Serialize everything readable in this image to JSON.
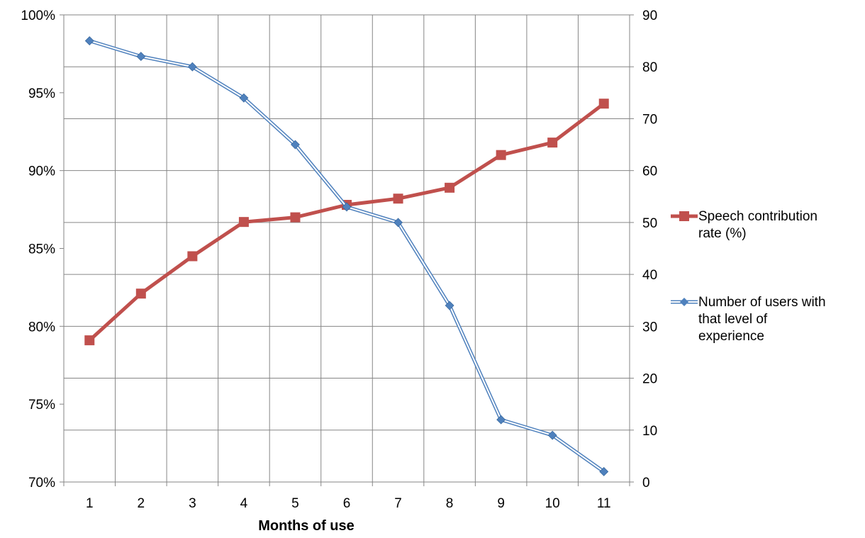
{
  "chart_data": {
    "type": "line",
    "title": "",
    "xlabel": "Months of use",
    "x": [
      1,
      2,
      3,
      4,
      5,
      6,
      7,
      8,
      9,
      10,
      11
    ],
    "y_left": {
      "ylim": [
        70,
        100
      ],
      "ticks": [
        70,
        75,
        80,
        85,
        90,
        95,
        100
      ],
      "tick_labels": [
        "70%",
        "75%",
        "80%",
        "85%",
        "90%",
        "95%",
        "100%"
      ]
    },
    "y_right": {
      "ylim": [
        0,
        90
      ],
      "ticks": [
        0,
        10,
        20,
        30,
        40,
        50,
        60,
        70,
        80,
        90
      ],
      "tick_labels": [
        "0",
        "10",
        "20",
        "30",
        "40",
        "50",
        "60",
        "70",
        "80",
        "90"
      ]
    },
    "series": [
      {
        "name": "Speech contribution rate (%)",
        "legend_lines": [
          "Speech contribution",
          "rate (%)"
        ],
        "axis": "left",
        "color": "#C0504D",
        "marker": "square",
        "values": [
          79.1,
          82.1,
          84.5,
          86.7,
          87.0,
          87.8,
          88.2,
          88.9,
          91.0,
          91.8,
          94.3
        ]
      },
      {
        "name": "Number of users with that level of experience",
        "legend_lines": [
          "Number of users with",
          "that level of",
          "experience"
        ],
        "axis": "right",
        "color": "#4F81BD",
        "marker": "diamond",
        "values": [
          85,
          82,
          80,
          74,
          65,
          53,
          50,
          34,
          12,
          9,
          2
        ]
      }
    ],
    "grid": true,
    "legend_position": "right"
  }
}
